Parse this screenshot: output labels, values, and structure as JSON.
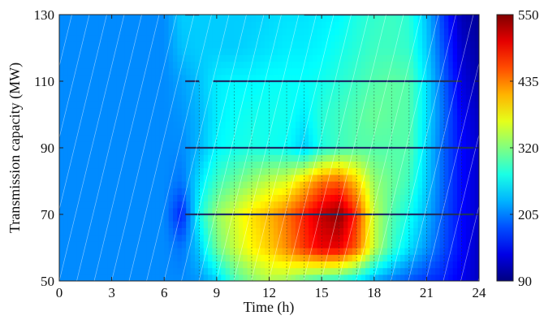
{
  "chart_data": {
    "type": "heatmap",
    "xlabel": "Time (h)",
    "ylabel": "Transmission capacity (MW)",
    "xlim": [
      0,
      24
    ],
    "ylim": [
      50,
      130
    ],
    "xticks": [
      0,
      3,
      6,
      9,
      12,
      15,
      18,
      21,
      24
    ],
    "yticks": [
      50,
      70,
      90,
      110,
      130
    ],
    "colorbar": {
      "range": [
        90,
        550
      ],
      "ticks": [
        90,
        205,
        320,
        435,
        550
      ],
      "colormap": "jet"
    },
    "x": [
      0,
      3,
      6,
      7,
      8,
      9,
      10,
      11,
      12,
      13,
      14,
      15,
      16,
      17,
      18,
      19,
      20,
      21,
      22,
      23,
      24
    ],
    "y": [
      50,
      60,
      70,
      80,
      90,
      100,
      110,
      120,
      130
    ],
    "z": [
      [
        210,
        210,
        210,
        210,
        215,
        240,
        290,
        320,
        340,
        330,
        300,
        280,
        270,
        250,
        220,
        200,
        185,
        170,
        160,
        140,
        120
      ],
      [
        210,
        210,
        210,
        200,
        240,
        310,
        350,
        380,
        400,
        430,
        470,
        500,
        500,
        450,
        350,
        290,
        250,
        215,
        180,
        150,
        120
      ],
      [
        210,
        210,
        210,
        160,
        270,
        330,
        360,
        390,
        410,
        440,
        480,
        520,
        545,
        470,
        350,
        300,
        270,
        230,
        185,
        150,
        125
      ],
      [
        210,
        210,
        210,
        200,
        250,
        290,
        310,
        330,
        350,
        360,
        400,
        440,
        450,
        400,
        330,
        310,
        290,
        240,
        190,
        150,
        125
      ],
      [
        210,
        210,
        210,
        210,
        230,
        260,
        270,
        275,
        270,
        265,
        240,
        275,
        290,
        300,
        300,
        300,
        300,
        245,
        190,
        150,
        125
      ],
      [
        210,
        210,
        210,
        215,
        230,
        255,
        265,
        270,
        270,
        270,
        255,
        280,
        290,
        300,
        310,
        305,
        300,
        250,
        195,
        145,
        120
      ],
      [
        210,
        210,
        210,
        220,
        235,
        255,
        260,
        260,
        265,
        265,
        265,
        270,
        280,
        290,
        300,
        305,
        300,
        250,
        190,
        135,
        110
      ],
      [
        210,
        210,
        210,
        235,
        240,
        240,
        240,
        245,
        250,
        255,
        255,
        260,
        270,
        280,
        290,
        290,
        285,
        240,
        180,
        125,
        105
      ],
      [
        210,
        210,
        210,
        240,
        240,
        240,
        240,
        240,
        245,
        250,
        250,
        255,
        260,
        275,
        285,
        290,
        280,
        235,
        170,
        115,
        100
      ]
    ]
  }
}
